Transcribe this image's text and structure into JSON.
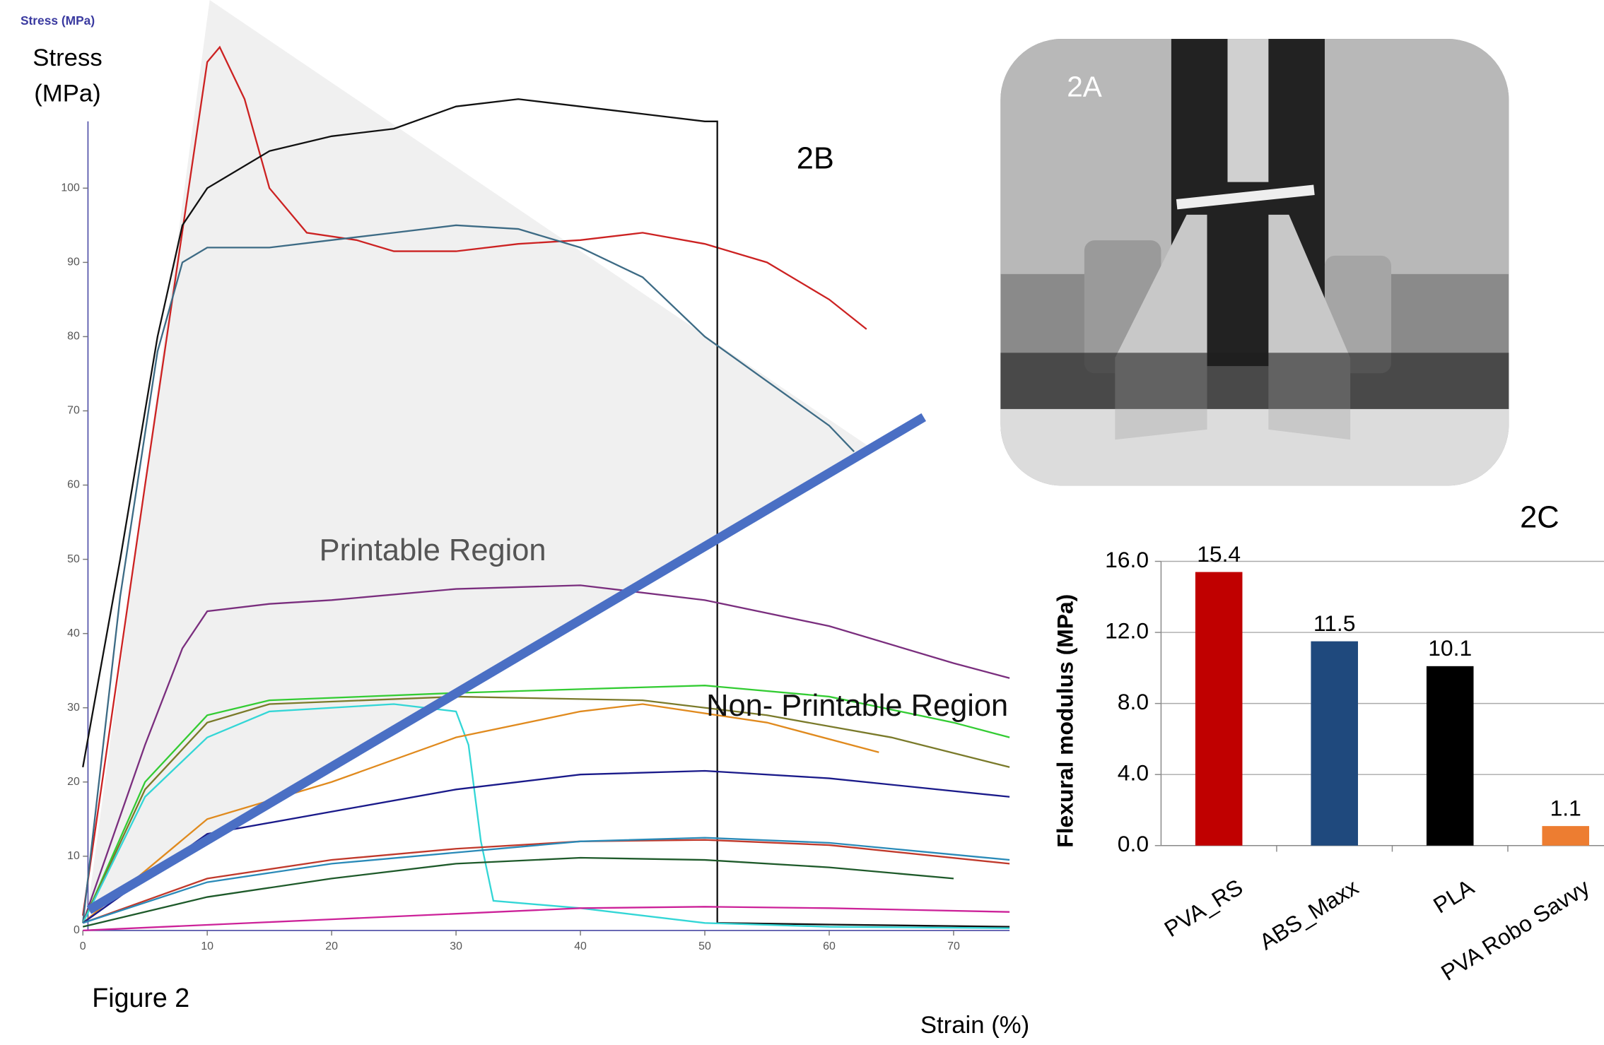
{
  "chart_data": [
    {
      "type": "line",
      "title": "Stress (MPa)",
      "ylabel": "Stress\n(MPa)",
      "xlabel": "Strain (%)",
      "panel_label": "2B",
      "annotations": [
        "Printable Region",
        "Non- Printable Region"
      ],
      "caption": "Figure 2",
      "xlim": [
        0,
        74.5
      ],
      "ylim": [
        0,
        109
      ],
      "xticks": [
        0,
        10,
        20,
        30,
        40,
        50,
        60,
        70
      ],
      "yticks": [
        0,
        10,
        20,
        30,
        40,
        50,
        60,
        70,
        80,
        90,
        100
      ],
      "series": [
        {
          "color": "#cc2222",
          "x": [
            0,
            5,
            10,
            11,
            13,
            15,
            18,
            22,
            25,
            30,
            35,
            40,
            45,
            50,
            55,
            60,
            63
          ],
          "values": [
            2,
            60,
            117,
            119,
            112,
            100,
            94,
            93,
            91.5,
            91.5,
            92.5,
            93,
            94,
            92.5,
            90,
            85,
            81
          ]
        },
        {
          "color": "#111111",
          "x": [
            0,
            3,
            6,
            8,
            10,
            15,
            20,
            25,
            30,
            35,
            40,
            45,
            50,
            51,
            51,
            60,
            74.5
          ],
          "values": [
            22,
            50,
            80,
            95,
            100,
            105,
            107,
            108,
            111,
            112,
            111,
            110,
            109,
            109,
            1,
            0.8,
            0.5
          ]
        },
        {
          "color": "#3d6b85",
          "x": [
            0,
            3,
            6,
            8,
            10,
            15,
            20,
            25,
            30,
            35,
            40,
            45,
            50,
            55,
            60,
            62
          ],
          "values": [
            1,
            45,
            78,
            90,
            92,
            92,
            93,
            94,
            95,
            94.5,
            92,
            88,
            80,
            74,
            68,
            64.5
          ]
        },
        {
          "color": "#7a2e7e",
          "x": [
            0,
            5,
            8,
            10,
            15,
            20,
            30,
            40,
            50,
            60,
            70,
            74.5
          ],
          "values": [
            1,
            25,
            38,
            43,
            44,
            44.5,
            46,
            46.5,
            44.5,
            41,
            36,
            34
          ]
        },
        {
          "color": "#33cc33",
          "x": [
            0,
            5,
            10,
            15,
            30,
            40,
            50,
            60,
            70,
            74.5
          ],
          "values": [
            1,
            20,
            29,
            31,
            32,
            32.5,
            33,
            31.5,
            28,
            26
          ]
        },
        {
          "color": "#7a7a2a",
          "x": [
            0,
            5,
            10,
            15,
            30,
            45,
            55,
            65,
            74.5
          ],
          "values": [
            1,
            19,
            28,
            30.5,
            31.5,
            31,
            29,
            26,
            22
          ]
        },
        {
          "color": "#33d6d6",
          "x": [
            0,
            5,
            10,
            15,
            25,
            30,
            31,
            32,
            33,
            40,
            50,
            60,
            74.5
          ],
          "values": [
            1,
            18,
            26,
            29.5,
            30.5,
            29.5,
            25,
            12,
            4,
            3,
            1,
            0.5,
            0.3
          ]
        },
        {
          "color": "#e08a1e",
          "x": [
            0,
            10,
            20,
            30,
            40,
            45,
            55,
            64
          ],
          "values": [
            1,
            15,
            20,
            26,
            29.5,
            30.5,
            28,
            24
          ]
        },
        {
          "color": "#1a1a8a",
          "x": [
            0,
            10,
            20,
            30,
            40,
            50,
            60,
            74.5
          ],
          "values": [
            1,
            13,
            16,
            19,
            21,
            21.5,
            20.5,
            18
          ]
        },
        {
          "color": "#c0392b",
          "x": [
            0,
            10,
            20,
            30,
            40,
            50,
            60,
            74.5
          ],
          "values": [
            1,
            7,
            9.5,
            11,
            12,
            12.2,
            11.5,
            9
          ]
        },
        {
          "color": "#2a8ab8",
          "x": [
            0,
            10,
            20,
            30,
            40,
            50,
            60,
            74.5
          ],
          "values": [
            1,
            6.5,
            9,
            10.5,
            12,
            12.5,
            11.8,
            9.5
          ]
        },
        {
          "color": "#1e5a2a",
          "x": [
            0,
            10,
            20,
            30,
            40,
            50,
            60,
            70
          ],
          "values": [
            0.5,
            4.5,
            7,
            9,
            9.8,
            9.5,
            8.5,
            7
          ]
        },
        {
          "color": "#cc2299",
          "x": [
            0,
            20,
            40,
            50,
            60,
            74.5
          ],
          "values": [
            0,
            1.5,
            3,
            3.2,
            3,
            2.5
          ]
        }
      ]
    },
    {
      "type": "bar",
      "panel_label": "2C",
      "ylabel": "Flexural modulus (MPa)",
      "categories": [
        "PVA_RS",
        "ABS_Maxx",
        "PLA",
        "PVA Robo Savvy"
      ],
      "values": [
        15.4,
        11.5,
        10.1,
        1.1
      ],
      "colors": [
        "#c00000",
        "#1f497d",
        "#000000",
        "#ed7d31"
      ],
      "ylim": [
        0,
        16
      ],
      "yticks": [
        {
          "value": 0,
          "label": "0.0"
        },
        {
          "value": 4,
          "label": "4.0"
        },
        {
          "value": 8,
          "label": "8.0"
        },
        {
          "value": 12,
          "label": "12.0"
        },
        {
          "value": 16,
          "label": "16.0"
        }
      ],
      "grid": true
    },
    {
      "type": "image",
      "panel_label": "2A"
    }
  ]
}
